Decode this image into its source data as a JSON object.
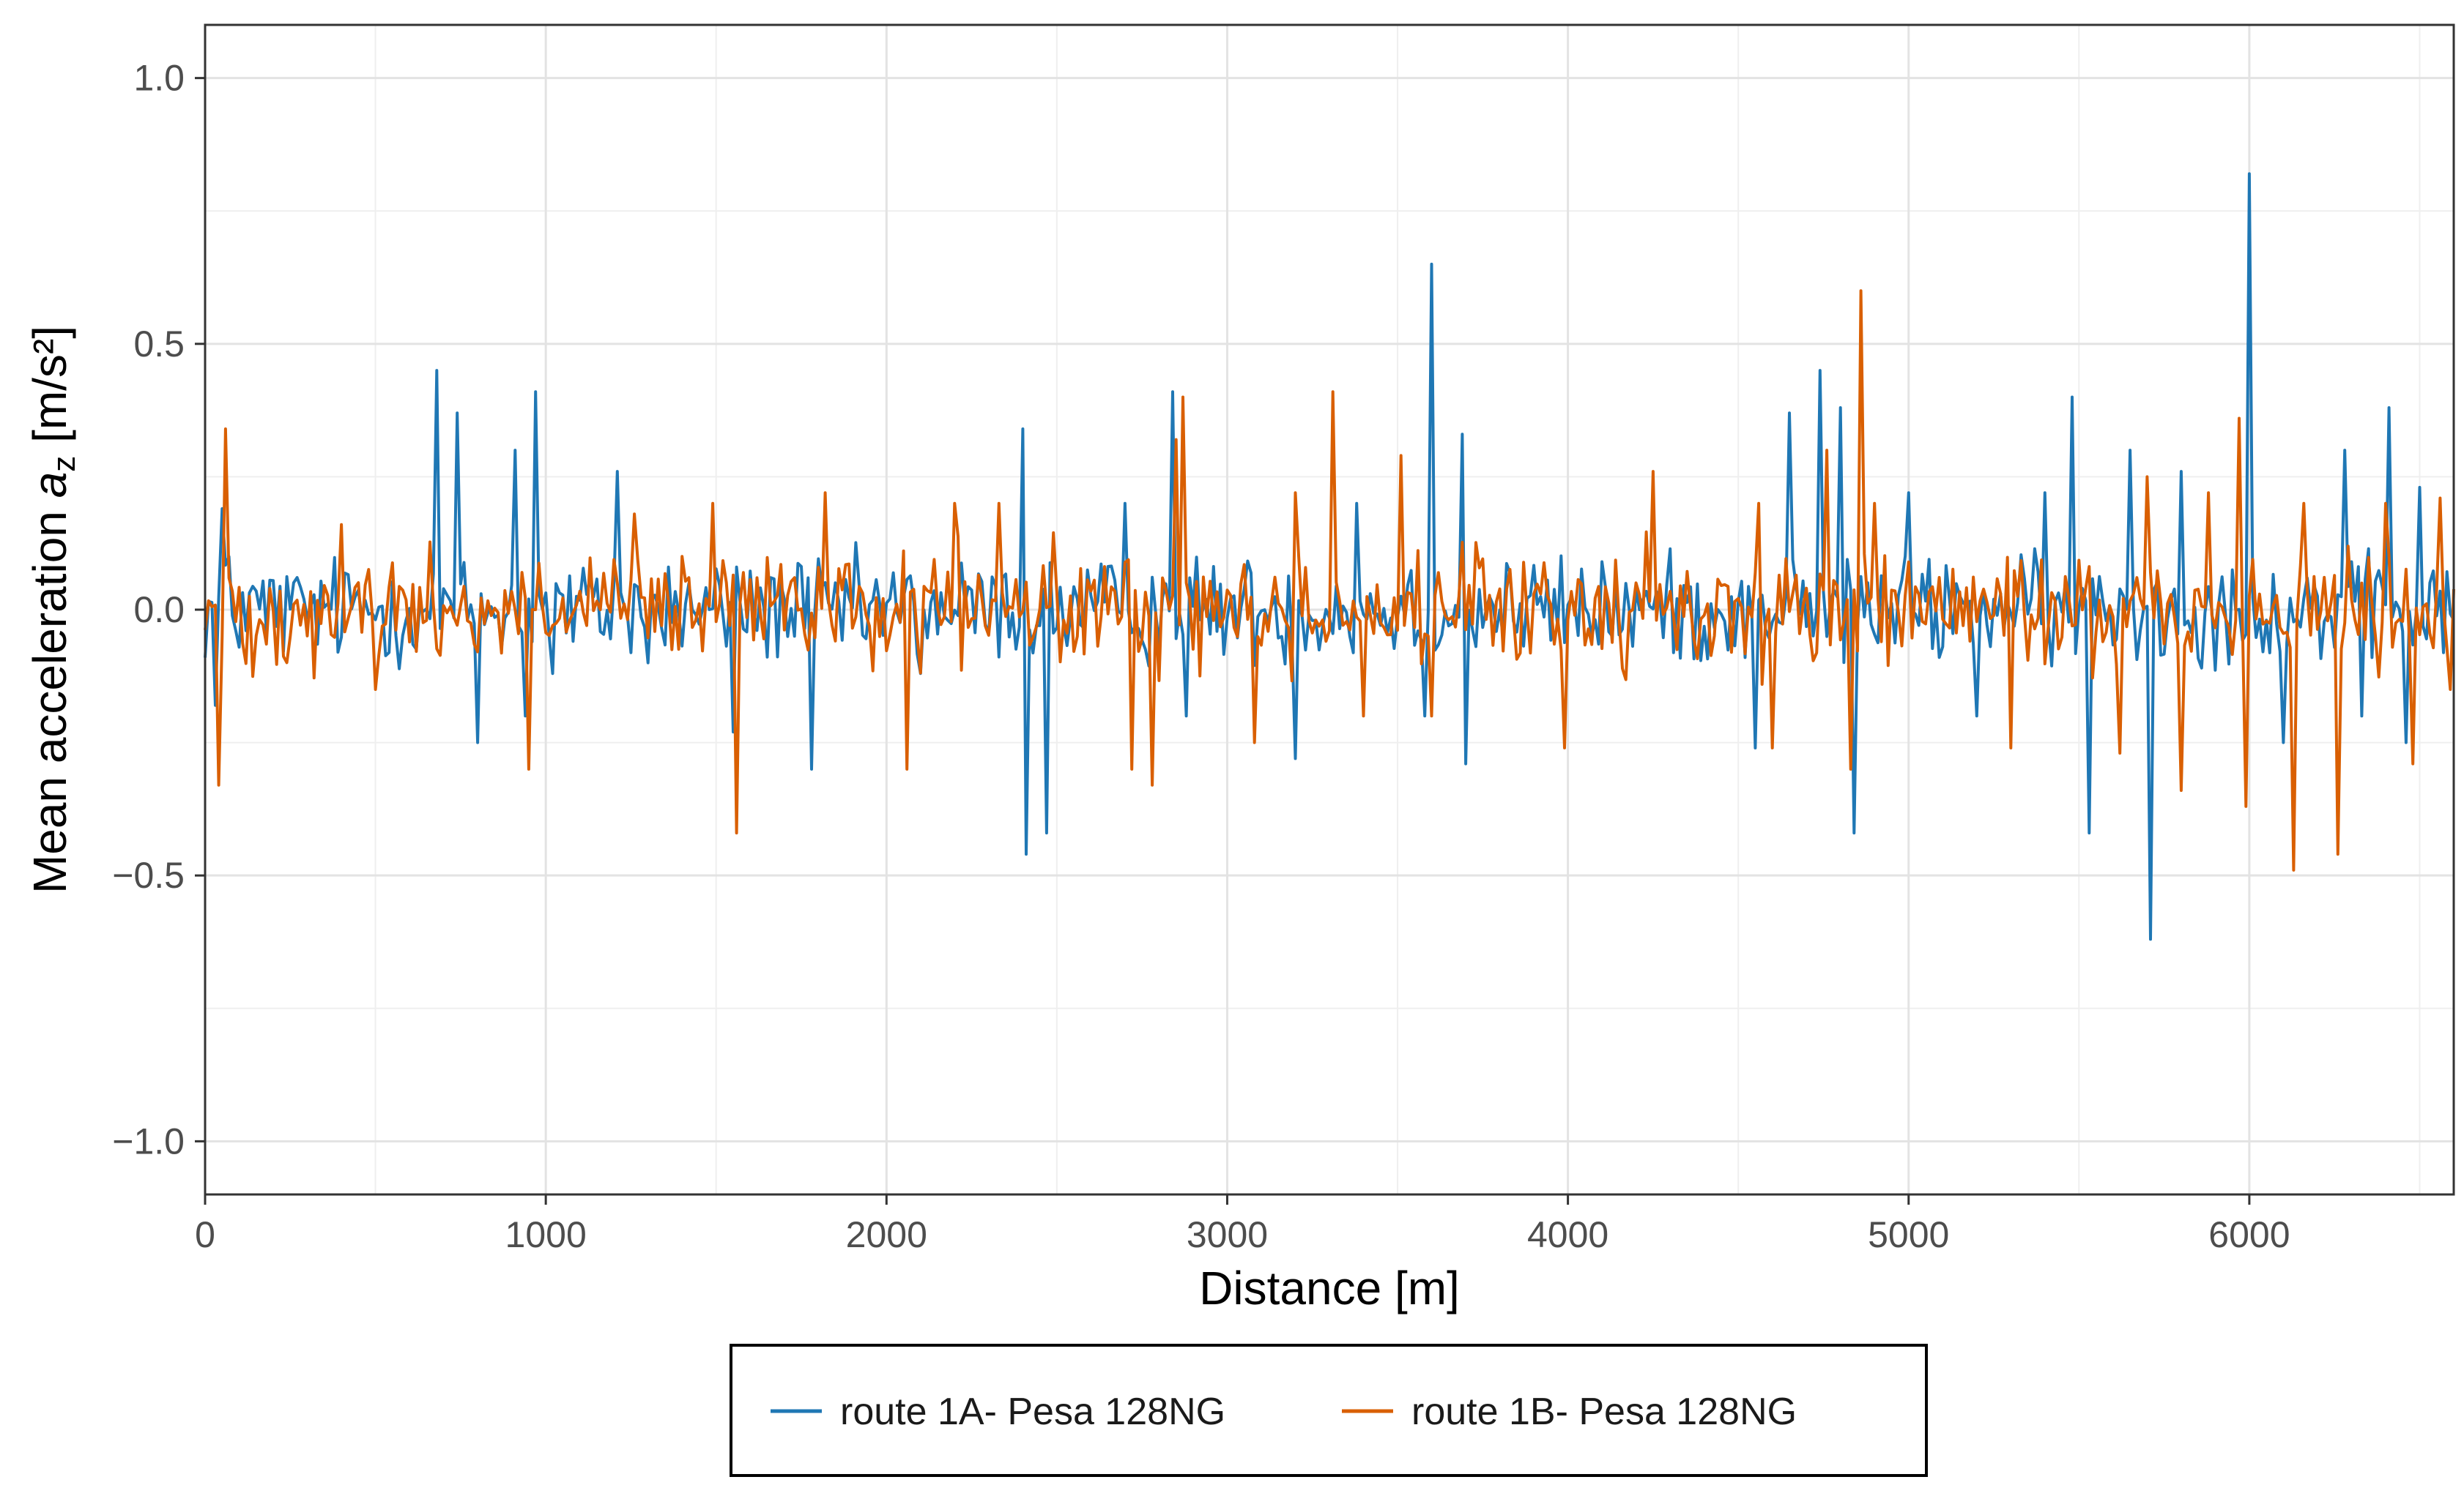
{
  "chart_data": {
    "type": "line",
    "title": "",
    "xlabel": "Distance [m]",
    "ylabel_prefix": "Mean acceleration ",
    "ylabel_symbol": "a",
    "ylabel_subscript": "z",
    "ylabel_suffix": " [m/s²]",
    "xlim": [
      0,
      6600
    ],
    "ylim": [
      -1.1,
      1.1
    ],
    "x_ticks": [
      0,
      1000,
      2000,
      3000,
      4000,
      5000,
      6000
    ],
    "x_tick_labels": [
      "0",
      "1000",
      "2000",
      "3000",
      "4000",
      "5000",
      "6000"
    ],
    "y_ticks": [
      -1.0,
      -0.5,
      0.0,
      0.5,
      1.0
    ],
    "y_tick_labels": [
      "−1.0",
      "−0.5",
      "0.0",
      "0.5",
      "1.0"
    ],
    "grid": true,
    "legend_position": "bottom",
    "series": [
      {
        "name": "route 1A- Pesa 128NG",
        "color": "#1f77b4",
        "x_step": 10,
        "noise_amplitude": 0.07,
        "spikes": [
          [
            25,
            -0.18
          ],
          [
            50,
            0.19
          ],
          [
            70,
            0.1
          ],
          [
            680,
            0.45
          ],
          [
            740,
            0.37
          ],
          [
            800,
            -0.25
          ],
          [
            910,
            0.3
          ],
          [
            940,
            -0.2
          ],
          [
            970,
            0.41
          ],
          [
            1020,
            -0.12
          ],
          [
            1210,
            0.26
          ],
          [
            1300,
            -0.1
          ],
          [
            1550,
            -0.23
          ],
          [
            1780,
            -0.3
          ],
          [
            2100,
            -0.12
          ],
          [
            2400,
            0.34
          ],
          [
            2410,
            -0.46
          ],
          [
            2470,
            -0.42
          ],
          [
            2700,
            0.2
          ],
          [
            2840,
            0.41
          ],
          [
            2880,
            -0.2
          ],
          [
            3200,
            -0.28
          ],
          [
            3380,
            0.2
          ],
          [
            3580,
            -0.2
          ],
          [
            3600,
            0.65
          ],
          [
            3690,
            0.33
          ],
          [
            3700,
            -0.29
          ],
          [
            4550,
            -0.26
          ],
          [
            4650,
            0.37
          ],
          [
            4740,
            0.45
          ],
          [
            4800,
            0.38
          ],
          [
            4840,
            -0.42
          ],
          [
            5000,
            0.22
          ],
          [
            5200,
            -0.2
          ],
          [
            5400,
            0.22
          ],
          [
            5480,
            0.4
          ],
          [
            5530,
            -0.42
          ],
          [
            5650,
            0.3
          ],
          [
            5710,
            -0.62
          ],
          [
            5800,
            0.26
          ],
          [
            6000,
            0.82
          ],
          [
            6100,
            -0.25
          ],
          [
            6280,
            0.3
          ],
          [
            6330,
            -0.2
          ],
          [
            6410,
            0.38
          ],
          [
            6460,
            -0.25
          ],
          [
            6500,
            0.23
          ]
        ]
      },
      {
        "name": "route 1B- Pesa 128NG",
        "color": "#d95f02",
        "x_step": 10,
        "noise_amplitude": 0.075,
        "spikes": [
          [
            40,
            -0.33
          ],
          [
            55,
            0.34
          ],
          [
            400,
            0.16
          ],
          [
            500,
            -0.15
          ],
          [
            950,
            -0.3
          ],
          [
            1260,
            0.18
          ],
          [
            1490,
            0.2
          ],
          [
            1560,
            -0.42
          ],
          [
            1820,
            0.22
          ],
          [
            2060,
            -0.3
          ],
          [
            2200,
            0.2
          ],
          [
            2330,
            0.2
          ],
          [
            2720,
            -0.3
          ],
          [
            2780,
            -0.33
          ],
          [
            2850,
            0.32
          ],
          [
            2870,
            0.4
          ],
          [
            3080,
            -0.25
          ],
          [
            3200,
            0.22
          ],
          [
            3310,
            0.41
          ],
          [
            3400,
            -0.2
          ],
          [
            3510,
            0.29
          ],
          [
            3600,
            -0.2
          ],
          [
            3990,
            -0.26
          ],
          [
            4250,
            0.26
          ],
          [
            4560,
            0.2
          ],
          [
            4600,
            -0.26
          ],
          [
            4760,
            0.3
          ],
          [
            4830,
            -0.3
          ],
          [
            4860,
            0.6
          ],
          [
            4900,
            0.2
          ],
          [
            5300,
            -0.26
          ],
          [
            5620,
            -0.27
          ],
          [
            5700,
            0.25
          ],
          [
            5800,
            -0.34
          ],
          [
            5880,
            0.22
          ],
          [
            5970,
            0.36
          ],
          [
            5990,
            -0.37
          ],
          [
            6130,
            -0.49
          ],
          [
            6160,
            0.2
          ],
          [
            6260,
            -0.46
          ],
          [
            6400,
            0.2
          ],
          [
            6480,
            -0.29
          ],
          [
            6560,
            0.21
          ],
          [
            6590,
            -0.15
          ]
        ]
      }
    ]
  }
}
